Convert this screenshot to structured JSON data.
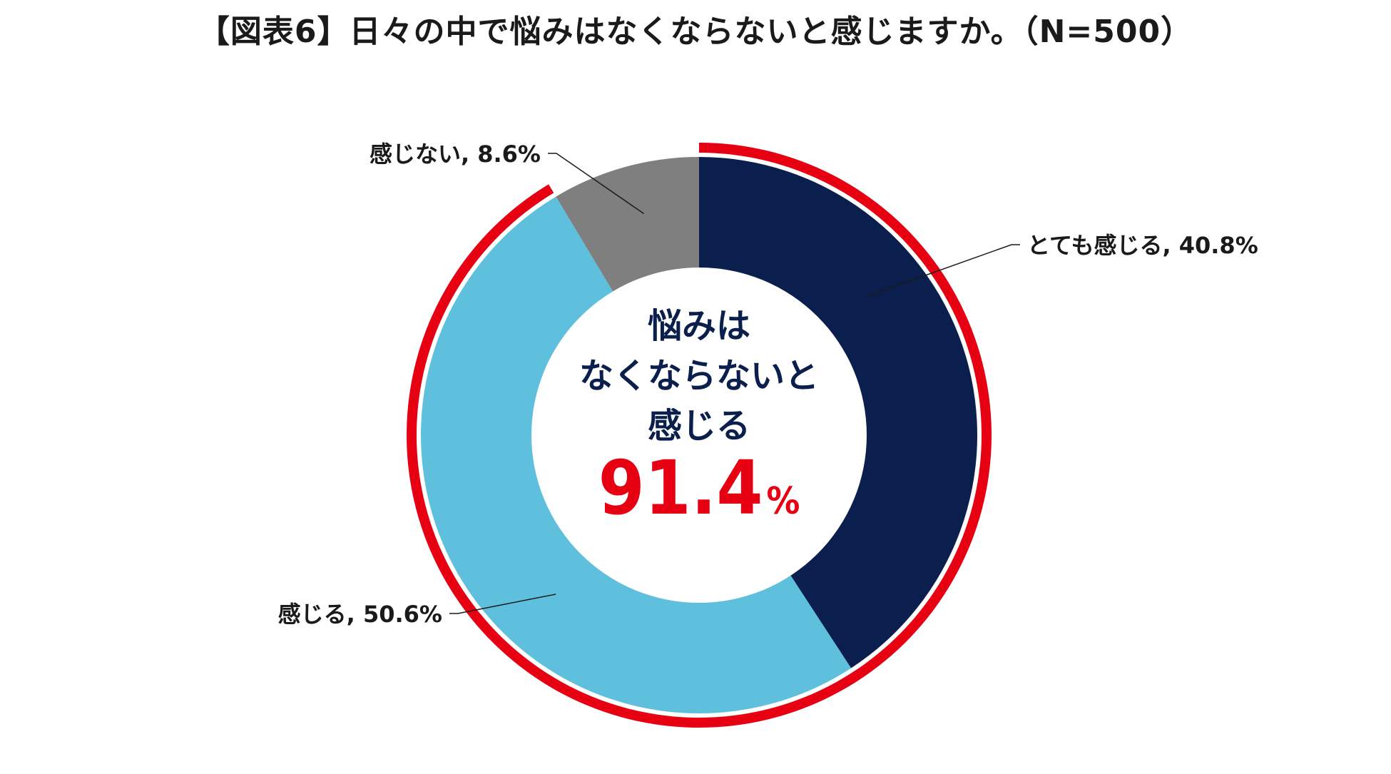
{
  "chart_data": {
    "type": "pie",
    "title": "【図表6】日々の中で悩みはなくならないと感じますか。（N=500）",
    "start_angle_deg": 0,
    "direction": "clockwise",
    "donut": true,
    "slices": [
      {
        "label": "とても感じる",
        "value": 40.8,
        "display": "とても感じる, 40.8%",
        "color": "#0b1f4f"
      },
      {
        "label": "感じる",
        "value": 50.6,
        "display": "感じる, 50.6%",
        "color": "#5ec0dc"
      },
      {
        "label": "感じない",
        "value": 8.6,
        "display": "感じない, 8.6%",
        "color": "#7f7f7f"
      }
    ],
    "highlight": {
      "line1": "悩みは",
      "line2": "なくならないと",
      "line3": "感じる",
      "value": "91.4",
      "unit": "%",
      "ring_color": "#e60012",
      "covers": [
        "とても感じる",
        "感じる"
      ],
      "text_color": "#0b1f4d",
      "value_color": "#e60012"
    }
  }
}
